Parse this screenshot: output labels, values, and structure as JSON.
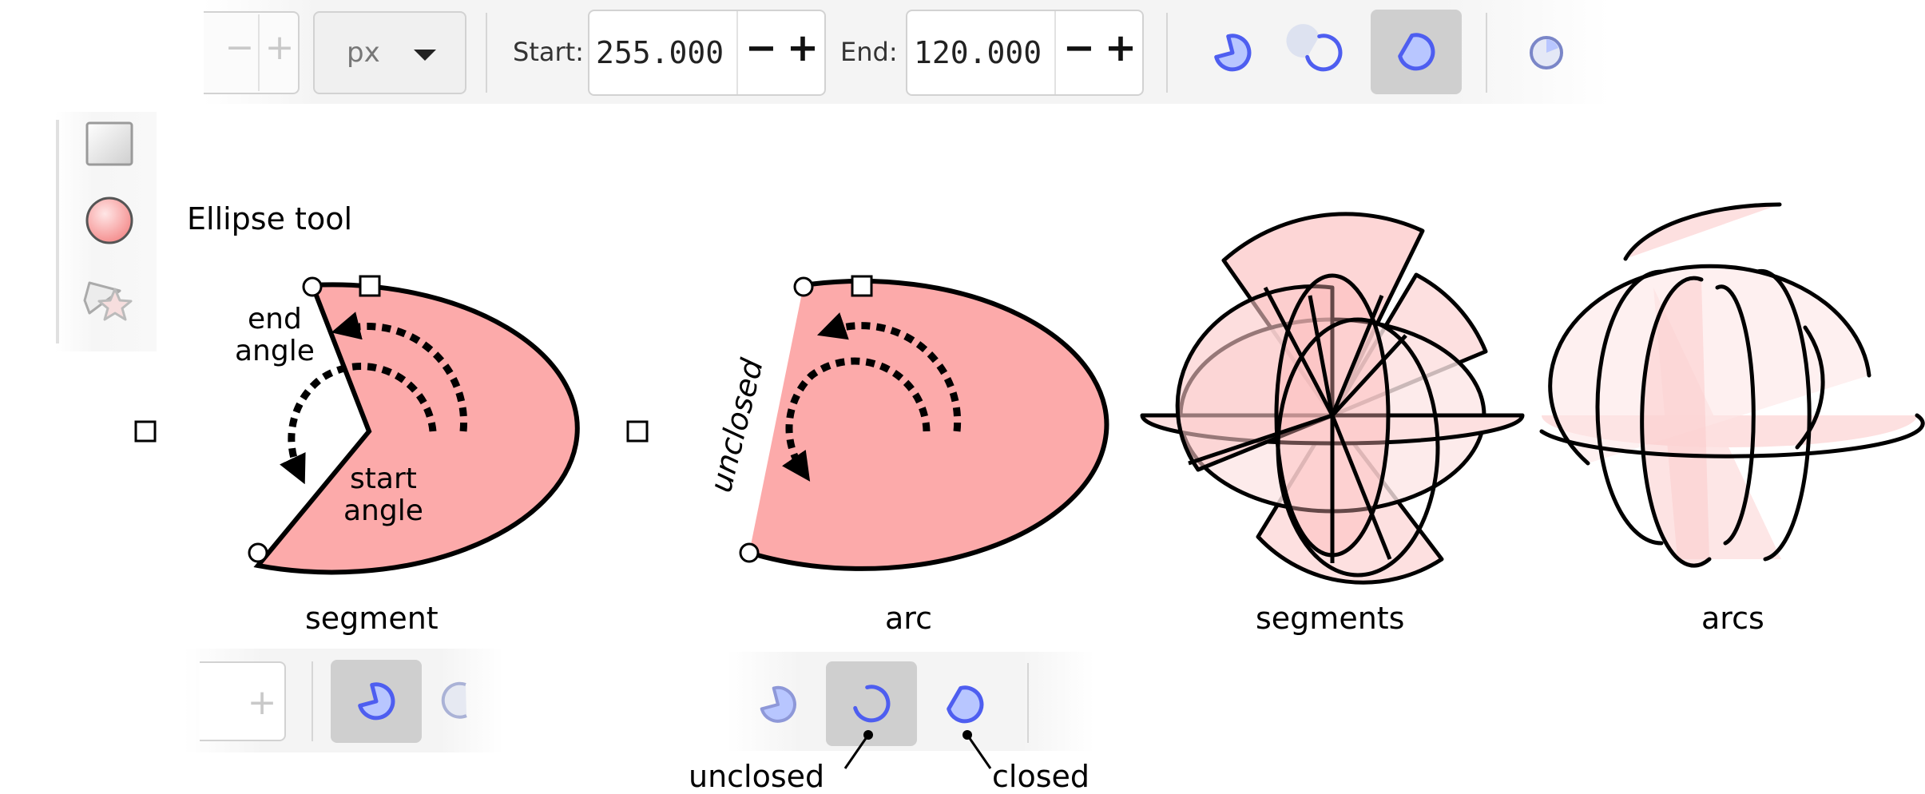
{
  "toolbar": {
    "minus_glyph": "−",
    "plus_glyph": "+",
    "unit_value": "px",
    "start_label": "Start:",
    "start_value": "255.000",
    "end_label": "End:",
    "end_value": "120.000",
    "arc_type_buttons": [
      {
        "icon": "slice-icon"
      },
      {
        "icon": "arc-icon"
      },
      {
        "icon": "chord-icon"
      },
      {
        "icon": "make-whole-icon"
      }
    ],
    "selected_index": 2
  },
  "toolbox": {
    "items": [
      {
        "icon": "rectangle-tool-icon"
      },
      {
        "icon": "ellipse-tool-icon"
      },
      {
        "icon": "star-tool-icon"
      }
    ],
    "active_label": "Ellipse tool"
  },
  "figures": {
    "segment": {
      "caption": "segment",
      "end_angle_label": [
        "end",
        "angle"
      ],
      "start_angle_label": [
        "start",
        "angle"
      ]
    },
    "arc": {
      "caption": "arc",
      "unclosed_side_label": "unclosed"
    },
    "segments": {
      "caption": "segments"
    },
    "arcs": {
      "caption": "arcs"
    }
  },
  "mini_toolbars": {
    "left": {
      "plus_glyph": "+",
      "buttons": [
        {
          "icon": "slice-icon"
        },
        {
          "icon": "arc-icon"
        }
      ],
      "selected_index": 0
    },
    "center": {
      "buttons": [
        {
          "icon": "slice-icon"
        },
        {
          "icon": "arc-icon"
        },
        {
          "icon": "chord-icon"
        }
      ],
      "selected_index": 1
    },
    "callouts": {
      "unclosed": "unclosed",
      "closed": "closed"
    }
  },
  "colors": {
    "fill": "#fcaaaa",
    "fill_light": "#fde0e0",
    "icon_blue": "#4e5ef0",
    "toolbar_bg": "#f4f4f4",
    "selected_bg": "#cfcfcf"
  }
}
